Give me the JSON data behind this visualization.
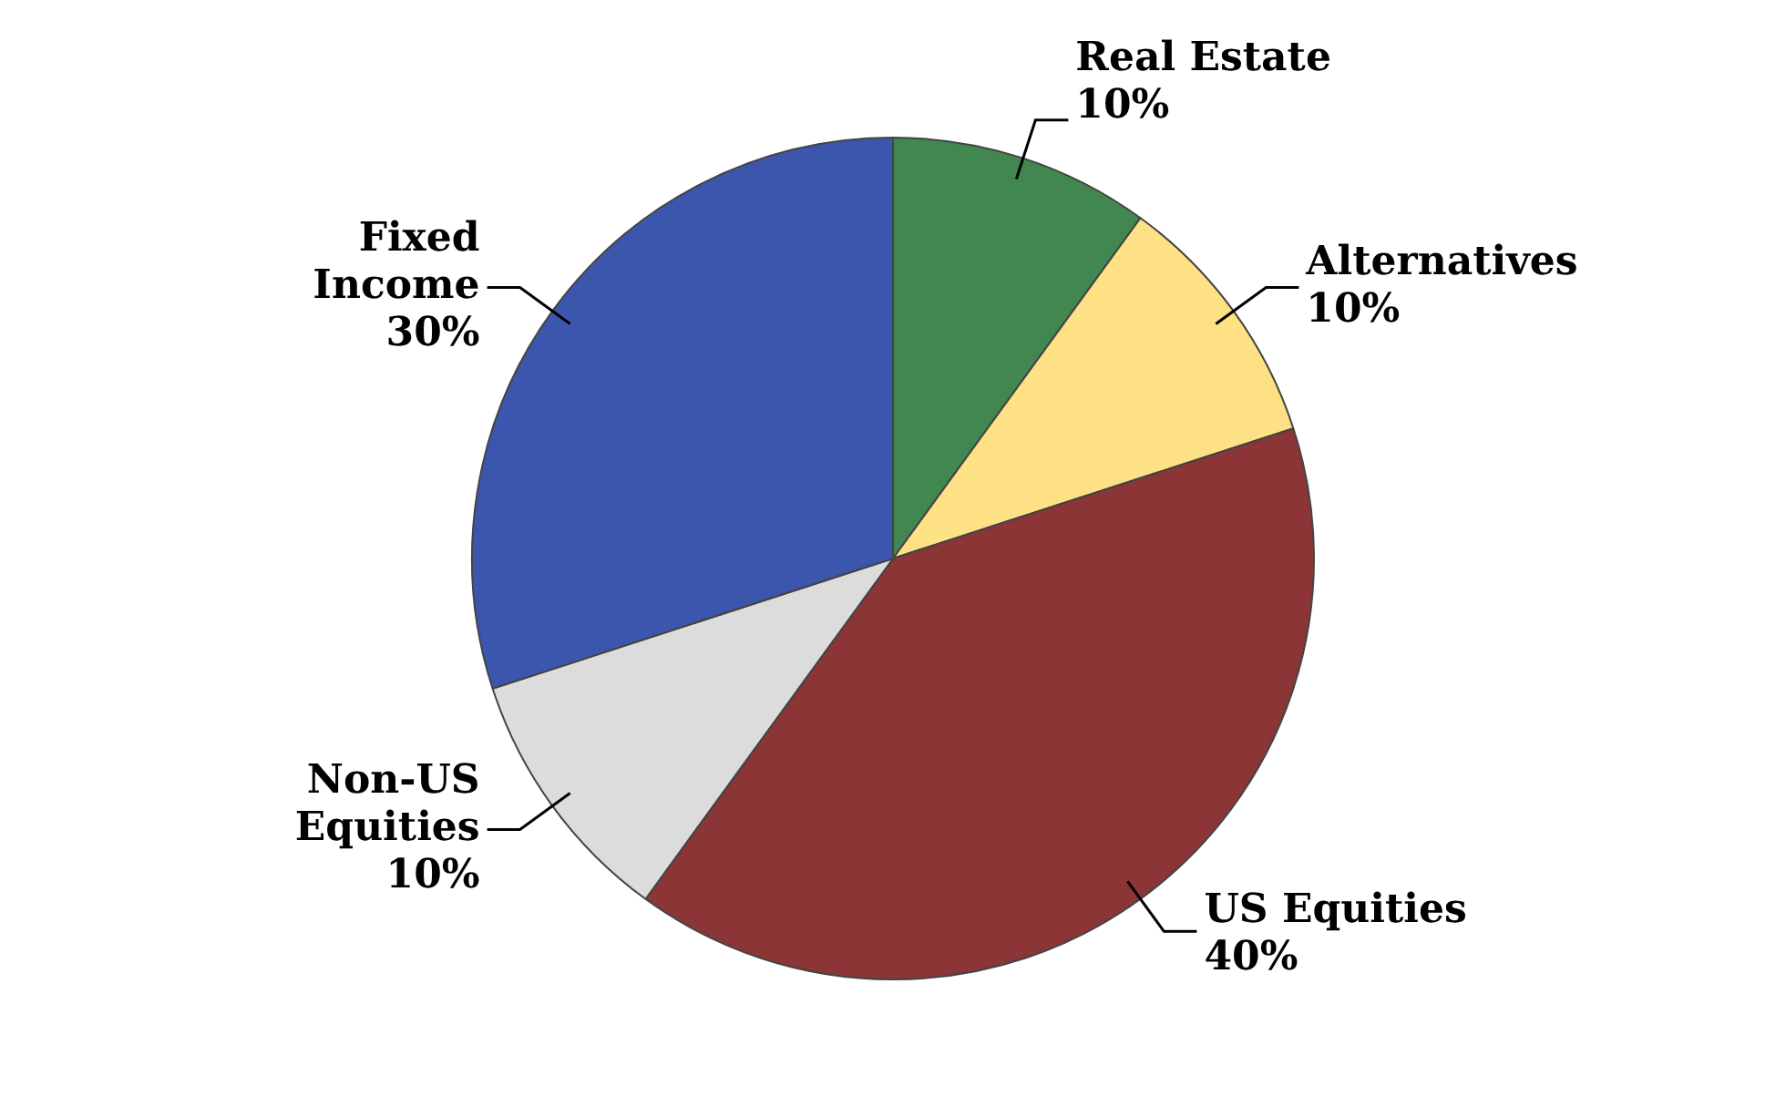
{
  "chart_data": {
    "type": "pie",
    "categories": [
      "Real Estate",
      "Alternatives",
      "US Equities",
      "Non-US Equities",
      "Fixed Income"
    ],
    "values": [
      10,
      10,
      40,
      10,
      30
    ],
    "colors": [
      "#42874f",
      "#fde184",
      "#8b3537",
      "#dcdcdc",
      "#3c56ad"
    ],
    "value_labels": [
      "10%",
      "10%",
      "40%",
      "10%",
      "30%"
    ],
    "legend": false
  }
}
